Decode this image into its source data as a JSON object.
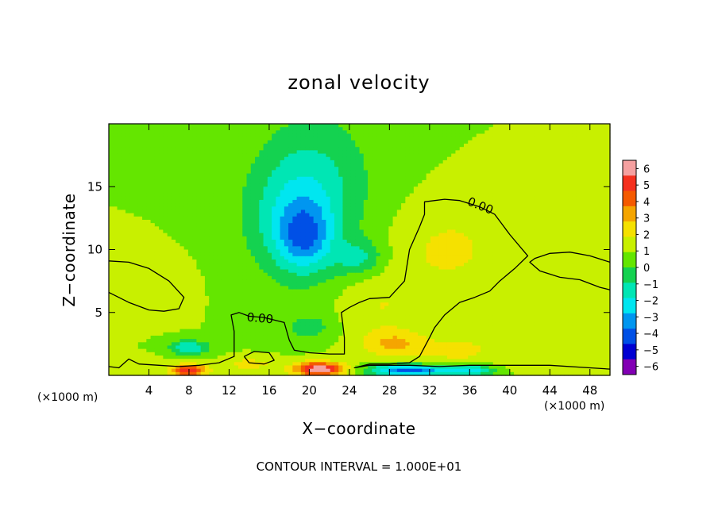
{
  "chart_data": {
    "type": "heatmap",
    "title": "zonal velocity",
    "xlabel": "X−coordinate",
    "ylabel": "Z−coordinate",
    "x_unit_left": "(×1000 m)",
    "x_unit_right": "(×1000 m)",
    "xlim": [
      0,
      50
    ],
    "ylim": [
      0,
      20
    ],
    "x_ticks": [
      4,
      8,
      12,
      16,
      20,
      24,
      28,
      32,
      36,
      40,
      44,
      48
    ],
    "y_ticks": [
      5,
      10,
      15
    ],
    "contour_interval_text": "CONTOUR INTERVAL = 1.000E+01",
    "contour_label": "0.00",
    "colorbar": {
      "levels": [
        6,
        5,
        4,
        3,
        2,
        1,
        0,
        -1,
        -2,
        -3,
        -4,
        -5,
        -6
      ],
      "tick_labels": [
        "6",
        "5",
        "4",
        "3",
        "2",
        "1",
        "0",
        "−1",
        "−2",
        "−3",
        "−4",
        "−5",
        "−6"
      ],
      "colors": [
        "#f5a0a0",
        "#f5301e",
        "#f55a00",
        "#f5a500",
        "#f5e100",
        "#c8f000",
        "#64e600",
        "#14d250",
        "#00e6b4",
        "#00e6f0",
        "#0096f0",
        "#0050e6",
        "#0000d2",
        "#8200b4"
      ]
    },
    "features": [
      {
        "x": 19.5,
        "z": 11.0,
        "value": -3.0,
        "sx": 2.6,
        "sz": 2.6
      },
      {
        "x": 18.5,
        "z": 12.5,
        "value": -2.4,
        "sx": 5.0,
        "sz": 5.0
      },
      {
        "x": 25.0,
        "z": 9.3,
        "value": -2.0,
        "sx": 2.5,
        "sz": 1.4
      },
      {
        "x": 21.0,
        "z": 16.0,
        "value": -1.5,
        "sx": 6.0,
        "sz": 6.0
      },
      {
        "x": 8.0,
        "z": 2.2,
        "value": -3.0,
        "sx": 2.0,
        "sz": 0.6
      },
      {
        "x": 20.0,
        "z": 3.8,
        "value": -1.5,
        "sx": 2.5,
        "sz": 1.0
      },
      {
        "x": 34.0,
        "z": 10.0,
        "value": 1.2,
        "sx": 5.5,
        "sz": 3.5
      },
      {
        "x": 27.0,
        "z": 5.5,
        "value": 1.0,
        "sx": 4.0,
        "sz": 3.0
      },
      {
        "x": 28.5,
        "z": 2.5,
        "value": 2.0,
        "sx": 3.0,
        "sz": 1.0
      },
      {
        "x": 35.0,
        "z": 2.0,
        "value": 1.3,
        "sx": 4.0,
        "sz": 1.2
      },
      {
        "x": 3.5,
        "z": 7.0,
        "value": 0.8,
        "sx": 3.5,
        "sz": 2.0
      },
      {
        "x": 46.0,
        "z": 8.5,
        "value": 0.7,
        "sx": 3.5,
        "sz": 2.0
      },
      {
        "x": 21.0,
        "z": 0.5,
        "value": 6.0,
        "sx": 2.5,
        "sz": 0.55
      },
      {
        "x": 8.0,
        "z": 0.4,
        "value": 5.0,
        "sx": 1.8,
        "sz": 0.45
      },
      {
        "x": 30.0,
        "z": 0.4,
        "value": -5.5,
        "sx": 4.0,
        "sz": 0.45
      },
      {
        "x": 36.0,
        "z": 0.4,
        "value": -3.5,
        "sx": 2.5,
        "sz": 0.45
      },
      {
        "x": 3.0,
        "z": 0.8,
        "value": 1.0,
        "sx": 2.0,
        "sz": 0.6
      },
      {
        "x": 44.0,
        "z": 0.8,
        "value": 1.0,
        "sx": 4.0,
        "sz": 0.6
      },
      {
        "x": 14.0,
        "z": 0.9,
        "value": 1.5,
        "sx": 2.5,
        "sz": 0.5
      }
    ],
    "contours": [
      {
        "name": "zero-contour-main",
        "points": [
          [
            0,
            0.7
          ],
          [
            1,
            0.6
          ],
          [
            2,
            1.3
          ],
          [
            3,
            0.9
          ],
          [
            5,
            0.8
          ],
          [
            7,
            0.7
          ],
          [
            9,
            0.8
          ],
          [
            11,
            1.0
          ],
          [
            12.5,
            1.5
          ],
          [
            12.5,
            3.5
          ],
          [
            12.2,
            4.8
          ],
          [
            13,
            5.0
          ],
          [
            14,
            4.7
          ],
          [
            15.5,
            4.6
          ],
          [
            17.5,
            4.2
          ],
          [
            18,
            2.8
          ],
          [
            18.5,
            2.0
          ],
          [
            20,
            1.8
          ],
          [
            22,
            1.7
          ],
          [
            23.5,
            1.7
          ],
          [
            23.5,
            3.0
          ],
          [
            23.2,
            5.0
          ],
          [
            24,
            5.4
          ],
          [
            25,
            5.8
          ],
          [
            26,
            6.1
          ],
          [
            28,
            6.2
          ],
          [
            29.5,
            7.5
          ],
          [
            30,
            10.0
          ],
          [
            31,
            11.8
          ],
          [
            31.5,
            12.8
          ],
          [
            31.5,
            13.8
          ],
          [
            33.5,
            14.0
          ],
          [
            35,
            13.9
          ],
          [
            37,
            13.4
          ],
          [
            38.5,
            12.8
          ],
          [
            40,
            11.2
          ],
          [
            41.8,
            9.5
          ],
          [
            40.5,
            8.5
          ],
          [
            39,
            7.5
          ],
          [
            38,
            6.7
          ],
          [
            36.5,
            6.2
          ],
          [
            35,
            5.8
          ],
          [
            33.5,
            4.8
          ],
          [
            32.5,
            3.8
          ],
          [
            32,
            3.0
          ],
          [
            31,
            1.5
          ],
          [
            30,
            1.0
          ],
          [
            28,
            0.9
          ],
          [
            26,
            0.9
          ],
          [
            24.5,
            0.6
          ],
          [
            26,
            0.8
          ],
          [
            30,
            0.8
          ],
          [
            33,
            0.7
          ],
          [
            36,
            0.8
          ],
          [
            40,
            0.8
          ],
          [
            44,
            0.8
          ],
          [
            48,
            0.6
          ],
          [
            50,
            0.5
          ]
        ]
      },
      {
        "name": "zero-contour-left-lobe",
        "points": [
          [
            0,
            9.1
          ],
          [
            2,
            9.0
          ],
          [
            4,
            8.5
          ],
          [
            6,
            7.5
          ],
          [
            7.5,
            6.2
          ],
          [
            7.0,
            5.3
          ],
          [
            5.5,
            5.1
          ],
          [
            4,
            5.2
          ],
          [
            2,
            5.8
          ],
          [
            0,
            6.6
          ]
        ]
      },
      {
        "name": "zero-contour-right-lobe",
        "points": [
          [
            50,
            9.0
          ],
          [
            48,
            9.5
          ],
          [
            46,
            9.8
          ],
          [
            44,
            9.7
          ],
          [
            42.5,
            9.3
          ],
          [
            42,
            9.0
          ],
          [
            43,
            8.3
          ],
          [
            45,
            7.8
          ],
          [
            47,
            7.6
          ],
          [
            49,
            7.0
          ],
          [
            50,
            6.8
          ]
        ]
      },
      {
        "name": "zero-contour-small-loop",
        "points": [
          [
            13.5,
            1.5
          ],
          [
            14.5,
            1.9
          ],
          [
            16,
            1.8
          ],
          [
            16.5,
            1.2
          ],
          [
            15.5,
            0.9
          ],
          [
            14,
            1.0
          ],
          [
            13.5,
            1.5
          ]
        ]
      }
    ]
  }
}
